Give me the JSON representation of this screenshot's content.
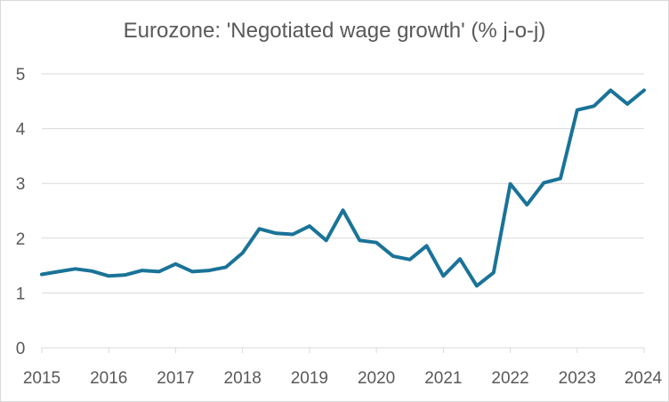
{
  "chart_data": {
    "type": "line",
    "title": "Eurozone: 'Negotiated wage growth' (% j-o-j)",
    "xlabel": "",
    "ylabel": "",
    "xlim": [
      2015,
      2024
    ],
    "ylim": [
      0,
      5
    ],
    "grid": "horizontal",
    "legend": "none",
    "x_ticks": [
      "2015",
      "2016",
      "2017",
      "2018",
      "2019",
      "2020",
      "2021",
      "2022",
      "2023",
      "2024"
    ],
    "y_ticks": [
      "0",
      "1",
      "2",
      "3",
      "4",
      "5"
    ],
    "series": [
      {
        "color": "#1a7398",
        "x": [
          2015.0,
          2015.25,
          2015.5,
          2015.75,
          2016.0,
          2016.25,
          2016.5,
          2016.75,
          2017.0,
          2017.25,
          2017.5,
          2017.75,
          2018.0,
          2018.25,
          2018.5,
          2018.75,
          2019.0,
          2019.25,
          2019.5,
          2019.75,
          2020.0,
          2020.25,
          2020.5,
          2020.75,
          2021.0,
          2021.25,
          2021.5,
          2021.75,
          2022.0,
          2022.25,
          2022.5,
          2022.75,
          2023.0,
          2023.25,
          2023.5,
          2023.75,
          2024.0
        ],
        "values": [
          1.34,
          1.39,
          1.44,
          1.4,
          1.31,
          1.33,
          1.41,
          1.39,
          1.53,
          1.39,
          1.41,
          1.47,
          1.73,
          2.17,
          2.09,
          2.07,
          2.22,
          1.96,
          2.51,
          1.96,
          1.92,
          1.67,
          1.61,
          1.86,
          1.31,
          1.62,
          1.13,
          1.37,
          2.99,
          2.61,
          3.01,
          3.09,
          4.34,
          4.41,
          4.7,
          4.45,
          4.7
        ]
      }
    ]
  }
}
